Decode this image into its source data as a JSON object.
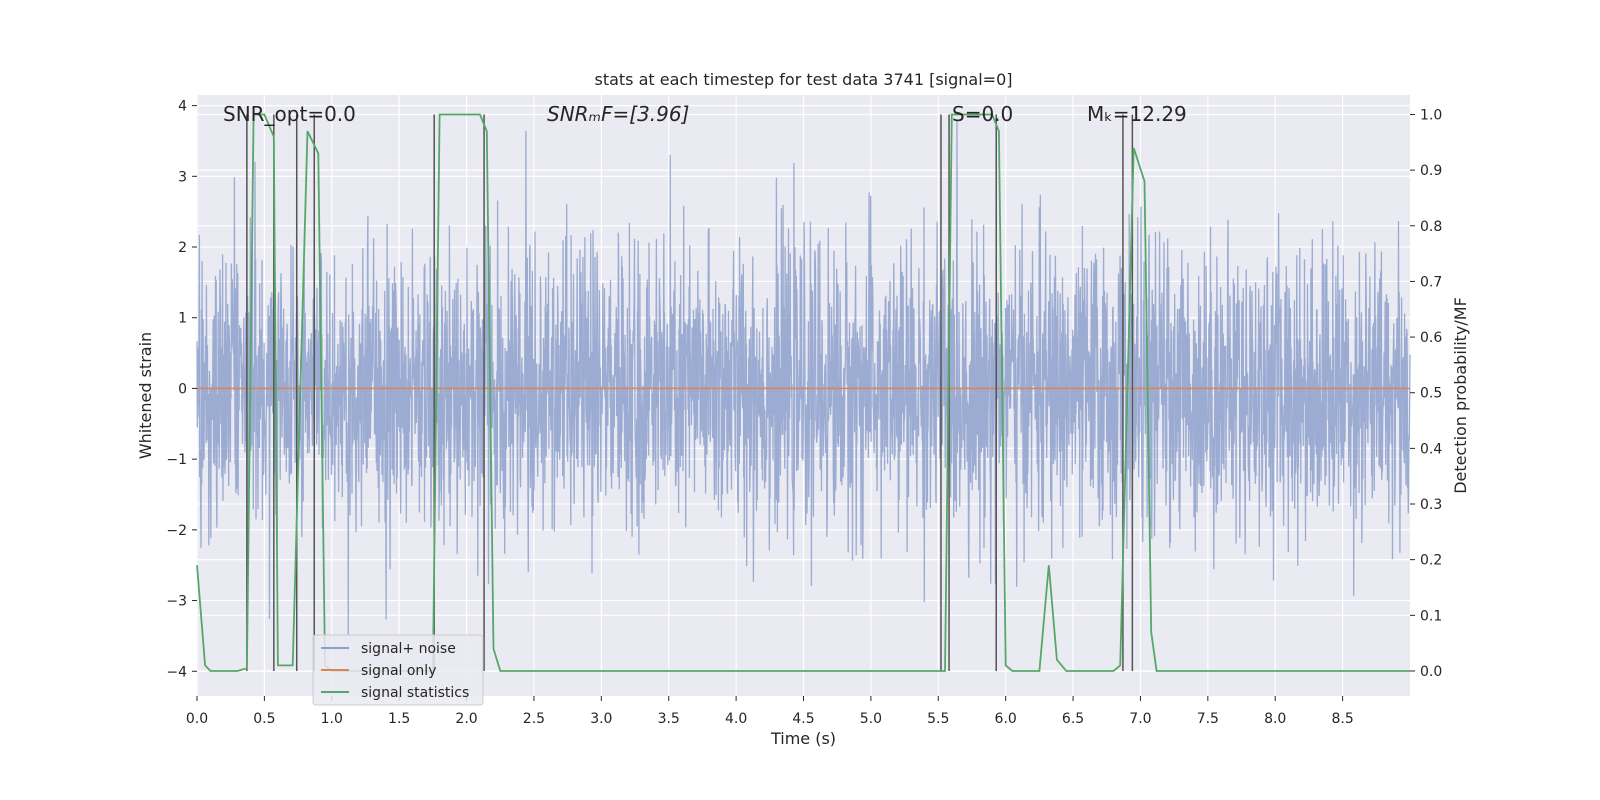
{
  "chart_data": {
    "type": "line",
    "title": "stats at each timestep for test data 3741 [signal=0]",
    "xlabel": "Time (s)",
    "ylabel_left": "Whitened strain",
    "ylabel_right": "Detection probability/MF",
    "xlim": [
      0.0,
      9.0
    ],
    "ylim_left": [
      -4.35,
      4.15
    ],
    "ylim_right": [
      -0.045,
      1.035
    ],
    "x_ticks": [
      0.0,
      0.5,
      1.0,
      1.5,
      2.0,
      2.5,
      3.0,
      3.5,
      4.0,
      4.5,
      5.0,
      5.5,
      6.0,
      6.5,
      7.0,
      7.5,
      8.0,
      8.5
    ],
    "x_tick_labels": [
      "0.0",
      "0.5",
      "1.0",
      "1.5",
      "2.0",
      "2.5",
      "3.0",
      "3.5",
      "4.0",
      "4.5",
      "5.0",
      "5.5",
      "6.0",
      "6.5",
      "7.0",
      "7.5",
      "8.0",
      "8.5"
    ],
    "y_left_ticks": [
      4,
      3,
      2,
      1,
      0,
      -1,
      -2,
      -3,
      -4
    ],
    "y_left_tick_labels": [
      "4",
      "3",
      "2",
      "1",
      "0",
      "−1",
      "−2",
      "−3",
      "−4"
    ],
    "y_right_ticks": [
      1.0,
      0.9,
      0.8,
      0.7,
      0.6,
      0.5,
      0.4,
      0.3,
      0.2,
      0.1,
      0.0
    ],
    "y_right_tick_labels": [
      "1.0",
      "0.9",
      "0.8",
      "0.7",
      "0.6",
      "0.5",
      "0.4",
      "0.3",
      "0.2",
      "0.1",
      "0.0"
    ],
    "grid": true,
    "legend_position": "lower-left",
    "annotations": [
      {
        "id": "snr-opt",
        "text": "SNR_opt=0.0"
      },
      {
        "id": "snr-mf",
        "text": "SNRₘF=[3.96]"
      },
      {
        "id": "s",
        "text": "S=0.0"
      },
      {
        "id": "mc",
        "text": "Mₖ=12.29"
      }
    ],
    "series": [
      {
        "name": "signal+ noise",
        "color": "#8da0cb",
        "axis": "left",
        "kind": "noise",
        "noise_std": 1.0,
        "noise_peak_abs": 3.8
      },
      {
        "name": "signal only",
        "color": "#dd8452",
        "axis": "left",
        "x": [
          0.0,
          9.0
        ],
        "y": [
          0.0,
          0.0
        ]
      },
      {
        "name": "signal statistics",
        "color": "#55a868",
        "axis": "right",
        "x": [
          0.0,
          0.06,
          0.1,
          0.3,
          0.37,
          0.42,
          0.5,
          0.57,
          0.6,
          0.65,
          0.71,
          0.82,
          0.9,
          0.95,
          1.0,
          1.75,
          1.8,
          1.9,
          2.1,
          2.15,
          2.2,
          2.25,
          4.0,
          5.5,
          5.55,
          5.6,
          5.7,
          5.9,
          5.95,
          6.0,
          6.05,
          6.1,
          6.25,
          6.32,
          6.38,
          6.45,
          6.8,
          6.85,
          6.95,
          7.03,
          7.08,
          7.12,
          9.0
        ],
        "y": [
          0.19,
          0.01,
          0.0,
          0.0,
          0.005,
          1.0,
          1.0,
          0.96,
          0.01,
          0.01,
          0.01,
          0.97,
          0.93,
          0.01,
          0.0,
          0.0,
          1.0,
          1.0,
          1.0,
          0.97,
          0.04,
          0.0,
          0.0,
          0.0,
          0.0,
          1.0,
          1.0,
          1.0,
          0.97,
          0.01,
          0.0,
          0.0,
          0.0,
          0.19,
          0.02,
          0.0,
          0.0,
          0.01,
          0.94,
          0.88,
          0.07,
          0.0,
          0.0
        ]
      }
    ],
    "vertical_marker_lines_x": [
      0.37,
      0.57,
      0.74,
      0.87,
      1.76,
      2.13,
      5.52,
      5.58,
      5.93,
      6.87,
      6.94
    ]
  },
  "legend": {
    "items": [
      {
        "label": "signal+ noise",
        "color": "#8da0cb"
      },
      {
        "label": "signal only",
        "color": "#dd8452"
      },
      {
        "label": "signal statistics",
        "color": "#55a868"
      }
    ]
  },
  "colors": {
    "plot_background": "#eaeaf2",
    "grid": "#ffffff",
    "marker_lines": "#555555"
  }
}
